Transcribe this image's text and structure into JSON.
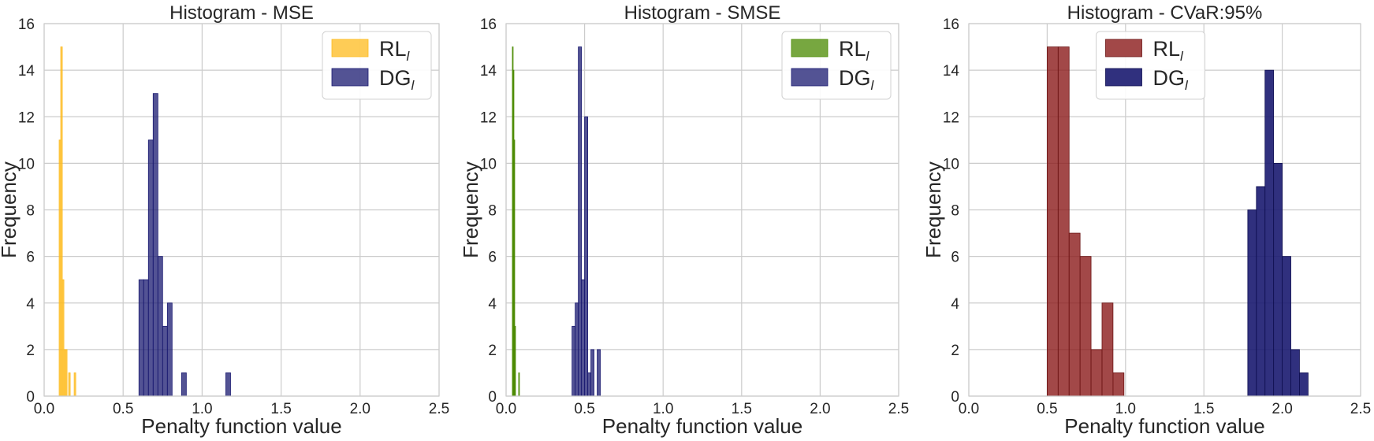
{
  "chart_data": [
    {
      "type": "bar",
      "title": "Histogram - MSE",
      "xlabel": "Penalty function value",
      "ylabel": "Frequency",
      "xlim": [
        0,
        2.5
      ],
      "ylim": [
        0,
        16
      ],
      "xticks": [
        "0.0",
        "0.5",
        "1.0",
        "1.5",
        "2.0",
        "2.5"
      ],
      "yticks": [
        "0",
        "2",
        "4",
        "6",
        "8",
        "10",
        "12",
        "14",
        "16"
      ],
      "grid": true,
      "legend_position": "top-right",
      "series": [
        {
          "name": "RL",
          "name_sub": "l",
          "color": "#FDBB1E",
          "opacity": 0.75,
          "edge": "#FDBB1E",
          "bins": [
            {
              "x0": 0.095,
              "x1": 0.105,
              "count": 11
            },
            {
              "x0": 0.105,
              "x1": 0.115,
              "count": 15
            },
            {
              "x0": 0.115,
              "x1": 0.125,
              "count": 5
            },
            {
              "x0": 0.125,
              "x1": 0.135,
              "count": 2
            },
            {
              "x0": 0.135,
              "x1": 0.145,
              "count": 2
            },
            {
              "x0": 0.155,
              "x1": 0.165,
              "count": 1
            },
            {
              "x0": 0.19,
              "x1": 0.2,
              "count": 1
            }
          ]
        },
        {
          "name": "DG",
          "name_sub": "l",
          "color": "#191970",
          "opacity": 0.75,
          "edge": "#191970",
          "bins": [
            {
              "x0": 0.6,
              "x1": 0.63,
              "count": 5
            },
            {
              "x0": 0.63,
              "x1": 0.66,
              "count": 5
            },
            {
              "x0": 0.66,
              "x1": 0.69,
              "count": 11
            },
            {
              "x0": 0.69,
              "x1": 0.72,
              "count": 13
            },
            {
              "x0": 0.72,
              "x1": 0.75,
              "count": 6
            },
            {
              "x0": 0.75,
              "x1": 0.78,
              "count": 3
            },
            {
              "x0": 0.78,
              "x1": 0.81,
              "count": 4
            },
            {
              "x0": 0.87,
              "x1": 0.9,
              "count": 1
            },
            {
              "x0": 1.15,
              "x1": 1.18,
              "count": 1
            }
          ]
        }
      ]
    },
    {
      "type": "bar",
      "title": "Histogram - SMSE",
      "xlabel": "Penalty function value",
      "ylabel": "Frequency",
      "xlim": [
        0,
        2.5
      ],
      "ylim": [
        0,
        16
      ],
      "xticks": [
        "0.0",
        "0.5",
        "1.0",
        "1.5",
        "2.0",
        "2.5"
      ],
      "yticks": [
        "0",
        "2",
        "4",
        "6",
        "8",
        "10",
        "12",
        "14",
        "16"
      ],
      "grid": true,
      "legend_position": "top-right",
      "series": [
        {
          "name": "RL",
          "name_sub": "l",
          "color": "#4A8A00",
          "opacity": 0.75,
          "edge": "#4A8A00",
          "bins": [
            {
              "x0": 0.04,
              "x1": 0.045,
              "count": 15
            },
            {
              "x0": 0.045,
              "x1": 0.05,
              "count": 14
            },
            {
              "x0": 0.05,
              "x1": 0.055,
              "count": 11
            },
            {
              "x0": 0.055,
              "x1": 0.06,
              "count": 3
            },
            {
              "x0": 0.08,
              "x1": 0.085,
              "count": 1
            }
          ]
        },
        {
          "name": "DG",
          "name_sub": "l",
          "color": "#191970",
          "opacity": 0.75,
          "edge": "#191970",
          "bins": [
            {
              "x0": 0.42,
              "x1": 0.44,
              "count": 3
            },
            {
              "x0": 0.44,
              "x1": 0.46,
              "count": 4
            },
            {
              "x0": 0.46,
              "x1": 0.48,
              "count": 15
            },
            {
              "x0": 0.48,
              "x1": 0.5,
              "count": 5
            },
            {
              "x0": 0.5,
              "x1": 0.52,
              "count": 12
            },
            {
              "x0": 0.52,
              "x1": 0.54,
              "count": 1
            },
            {
              "x0": 0.54,
              "x1": 0.56,
              "count": 2
            },
            {
              "x0": 0.58,
              "x1": 0.6,
              "count": 2
            }
          ]
        }
      ]
    },
    {
      "type": "bar",
      "title": "Histogram - CVaR:95%",
      "xlabel": "Penalty function value",
      "ylabel": "Frequency",
      "xlim": [
        0,
        2.5
      ],
      "ylim": [
        0,
        16
      ],
      "xticks": [
        "0.0",
        "0.5",
        "1.0",
        "1.5",
        "2.0",
        "2.5"
      ],
      "yticks": [
        "0",
        "2",
        "4",
        "6",
        "8",
        "10",
        "12",
        "14",
        "16"
      ],
      "grid": true,
      "legend_position": "top-center",
      "series": [
        {
          "name": "RL",
          "name_sub": "l",
          "color": "#8B1A1A",
          "opacity": 0.8,
          "edge": "#6B1414",
          "bins": [
            {
              "x0": 0.5,
              "x1": 0.57,
              "count": 15
            },
            {
              "x0": 0.57,
              "x1": 0.64,
              "count": 15
            },
            {
              "x0": 0.64,
              "x1": 0.71,
              "count": 7
            },
            {
              "x0": 0.71,
              "x1": 0.78,
              "count": 6
            },
            {
              "x0": 0.78,
              "x1": 0.85,
              "count": 2
            },
            {
              "x0": 0.85,
              "x1": 0.92,
              "count": 4
            },
            {
              "x0": 0.92,
              "x1": 0.99,
              "count": 1
            }
          ]
        },
        {
          "name": "DG",
          "name_sub": "l",
          "color": "#191970",
          "opacity": 0.9,
          "edge": "#0f0f50",
          "bins": [
            {
              "x0": 1.78,
              "x1": 1.835,
              "count": 8
            },
            {
              "x0": 1.835,
              "x1": 1.89,
              "count": 9
            },
            {
              "x0": 1.89,
              "x1": 1.945,
              "count": 14
            },
            {
              "x0": 1.945,
              "x1": 2.0,
              "count": 10
            },
            {
              "x0": 2.0,
              "x1": 2.055,
              "count": 6
            },
            {
              "x0": 2.055,
              "x1": 2.11,
              "count": 2
            },
            {
              "x0": 2.11,
              "x1": 2.165,
              "count": 1
            }
          ]
        }
      ]
    }
  ]
}
